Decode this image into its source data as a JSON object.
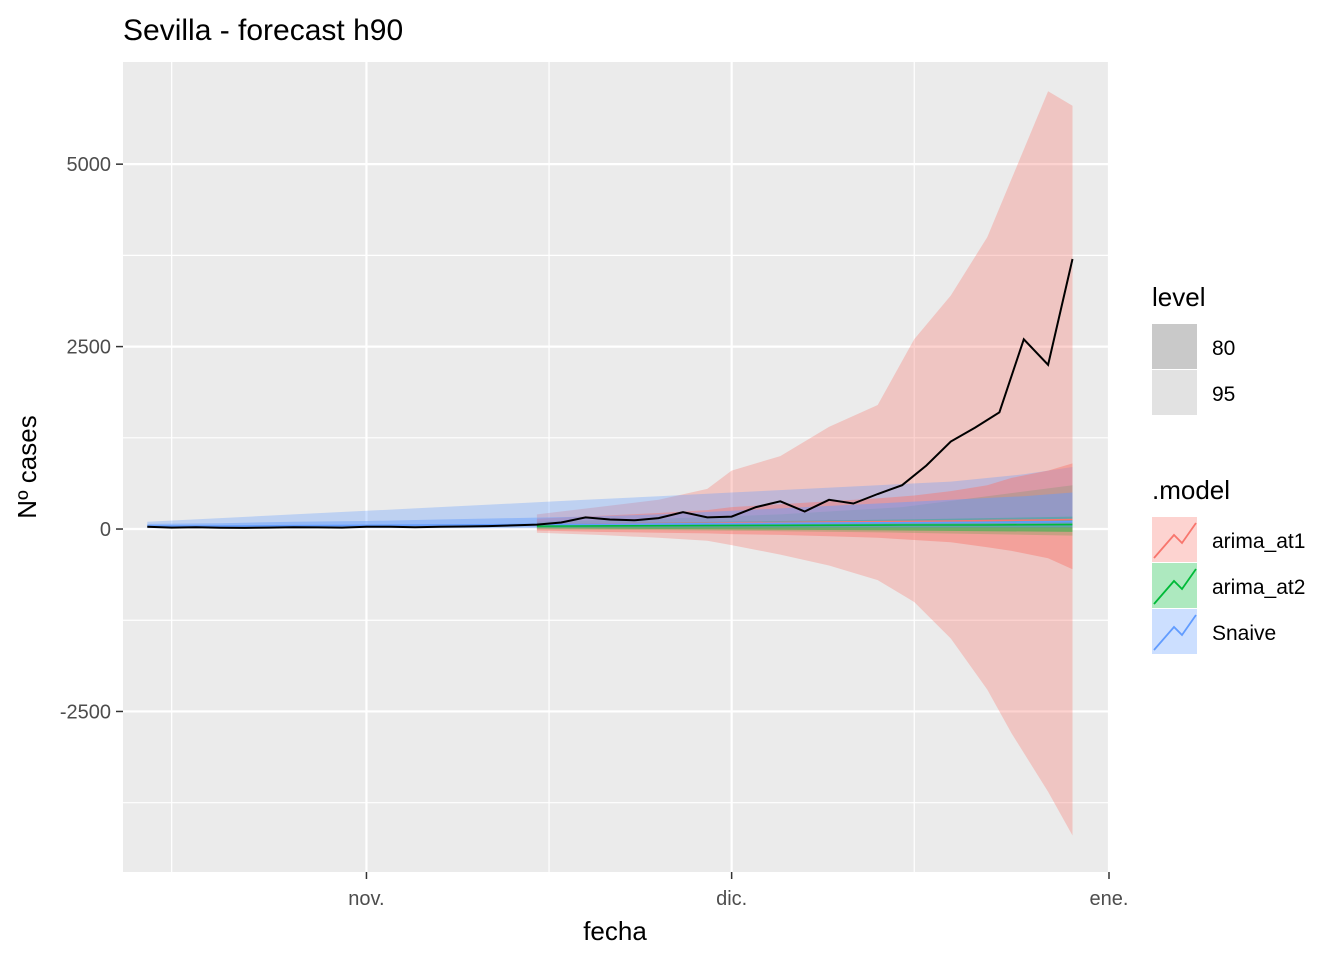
{
  "chart_data": {
    "type": "line",
    "title": "Sevilla - forecast h90",
    "xlabel": "fecha",
    "ylabel": "Nº cases",
    "x_ticks": [
      "nov.",
      "dic.",
      "ene."
    ],
    "y_ticks": [
      5000,
      2500,
      0,
      -2500
    ],
    "ylim": [
      -4700,
      6400
    ],
    "xlim": [
      "2020-10-12",
      "2021-01-01"
    ],
    "grid": true,
    "legend_placement": "right",
    "colors": {
      "panel": "#EBEBEB",
      "grid": "#FFFFFF",
      "actual": "#000000",
      "arima_at1": "#F8766D",
      "arima_at2": "#00BA38",
      "Snaive": "#619CFF",
      "level_80": "#C9C9C9",
      "level_95": "#E2E2E2"
    },
    "level_legend": {
      "title": "level",
      "items": [
        "80",
        "95"
      ]
    },
    "model_legend": {
      "title": ".model",
      "items": [
        "arima_at1",
        "arima_at2",
        "Snaive"
      ]
    },
    "actual": {
      "x": [
        "2020-10-14",
        "2020-10-16",
        "2020-10-18",
        "2020-10-20",
        "2020-10-22",
        "2020-10-24",
        "2020-10-26",
        "2020-10-28",
        "2020-10-30",
        "2020-11-01",
        "2020-11-03",
        "2020-11-05",
        "2020-11-07",
        "2020-11-09",
        "2020-11-11",
        "2020-11-13",
        "2020-11-15",
        "2020-11-17",
        "2020-11-19",
        "2020-11-21",
        "2020-11-23",
        "2020-11-25",
        "2020-11-27",
        "2020-11-29",
        "2020-12-01",
        "2020-12-03",
        "2020-12-05",
        "2020-12-07",
        "2020-12-09",
        "2020-12-11",
        "2020-12-13",
        "2020-12-15",
        "2020-12-17",
        "2020-12-19",
        "2020-12-21",
        "2020-12-23",
        "2020-12-25",
        "2020-12-27",
        "2020-12-29"
      ],
      "values": [
        30,
        20,
        25,
        18,
        15,
        20,
        25,
        22,
        20,
        30,
        30,
        25,
        30,
        35,
        40,
        50,
        60,
        90,
        160,
        130,
        120,
        150,
        230,
        160,
        170,
        300,
        380,
        240,
        400,
        350,
        480,
        600,
        870,
        1200,
        1390,
        1600,
        2600,
        2250,
        3700
      ]
    },
    "series": [
      {
        "name": "arima_at1",
        "x": [
          "2020-11-15",
          "2020-11-20",
          "2020-11-25",
          "2020-11-29",
          "2020-12-01",
          "2020-12-05",
          "2020-12-09",
          "2020-12-13",
          "2020-12-16",
          "2020-12-19",
          "2020-12-22",
          "2020-12-24",
          "2020-12-27",
          "2020-12-29"
        ],
        "mean": [
          60,
          70,
          75,
          80,
          85,
          90,
          95,
          100,
          105,
          110,
          115,
          120,
          125,
          130
        ],
        "lo80": [
          -20,
          -40,
          -50,
          -60,
          -70,
          -80,
          -100,
          -120,
          -150,
          -180,
          -250,
          -300,
          -400,
          -550
        ],
        "hi80": [
          140,
          180,
          220,
          260,
          300,
          340,
          380,
          420,
          460,
          520,
          600,
          700,
          800,
          900
        ],
        "lo95": [
          -50,
          -80,
          -120,
          -160,
          -220,
          -350,
          -500,
          -700,
          -1000,
          -1500,
          -2200,
          -2800,
          -3600,
          -4200
        ],
        "hi95": [
          200,
          300,
          400,
          550,
          800,
          1000,
          1400,
          1700,
          2600,
          3200,
          4000,
          4800,
          6000,
          5800
        ]
      },
      {
        "name": "arima_at2",
        "x": [
          "2020-11-15",
          "2020-11-25",
          "2020-12-05",
          "2020-12-15",
          "2020-12-22",
          "2020-12-29"
        ],
        "mean": [
          40,
          45,
          50,
          55,
          55,
          60
        ],
        "lo80": [
          10,
          0,
          -10,
          -20,
          -30,
          -40
        ],
        "hi80": [
          70,
          90,
          110,
          130,
          150,
          170
        ],
        "lo95": [
          -5,
          -15,
          -30,
          -50,
          -70,
          -90
        ],
        "hi95": [
          100,
          140,
          200,
          300,
          450,
          600
        ]
      },
      {
        "name": "Snaive",
        "x": [
          "2020-10-14",
          "2020-10-20",
          "2020-10-26",
          "2020-11-01",
          "2020-11-07",
          "2020-11-13",
          "2020-11-19",
          "2020-11-25",
          "2020-12-01",
          "2020-12-07",
          "2020-12-13",
          "2020-12-19",
          "2020-12-25",
          "2020-12-29"
        ],
        "mean": [
          40,
          40,
          45,
          50,
          55,
          60,
          65,
          70,
          75,
          80,
          85,
          90,
          95,
          100
        ],
        "lo80": [
          20,
          20,
          22,
          25,
          25,
          25,
          25,
          25,
          25,
          25,
          25,
          25,
          25,
          25
        ],
        "hi80": [
          70,
          80,
          100,
          110,
          130,
          150,
          170,
          200,
          250,
          300,
          350,
          400,
          450,
          500
        ],
        "lo95": [
          10,
          10,
          10,
          10,
          10,
          10,
          10,
          10,
          10,
          10,
          10,
          10,
          10,
          10
        ],
        "hi95": [
          100,
          150,
          200,
          250,
          300,
          350,
          400,
          450,
          500,
          550,
          600,
          650,
          750,
          850
        ]
      }
    ]
  }
}
